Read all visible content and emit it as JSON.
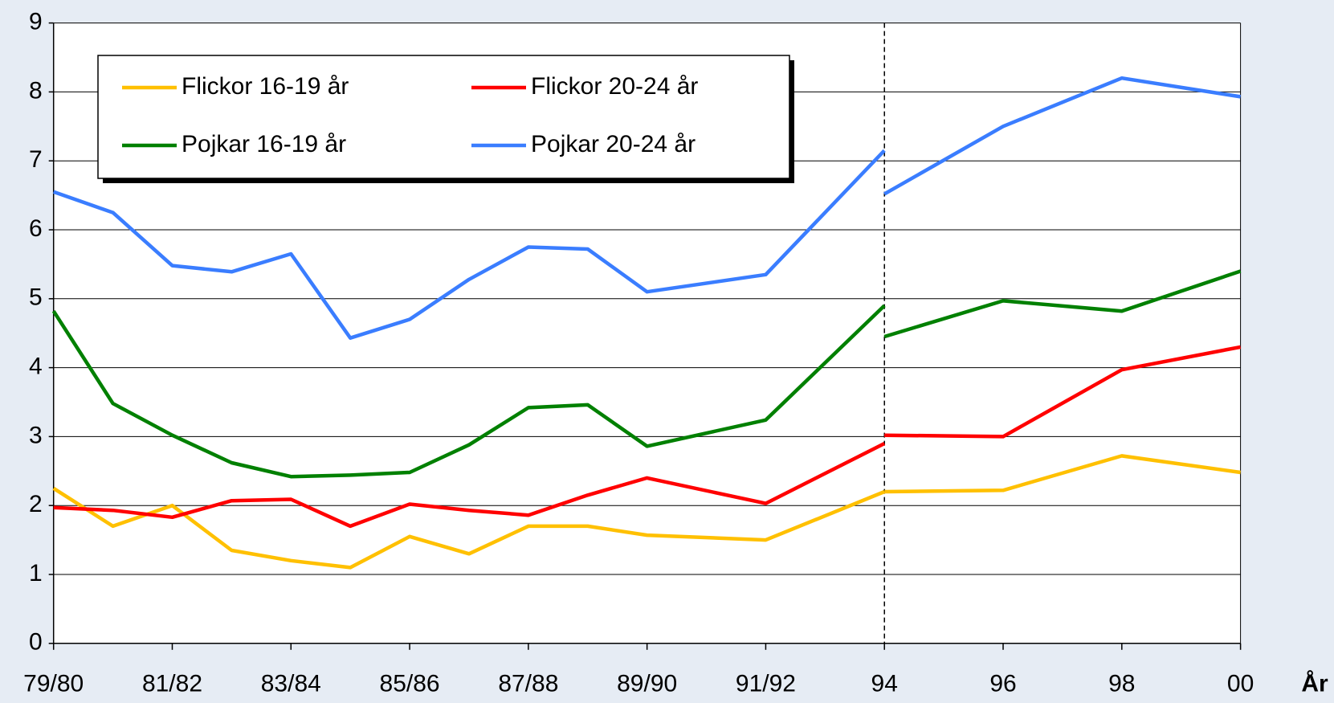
{
  "chart_data": {
    "type": "line",
    "x_label": "År",
    "x": [
      80,
      81,
      82,
      83,
      84,
      85,
      86,
      87,
      88,
      89,
      90,
      92,
      94
    ],
    "x_revised": [
      94,
      96,
      98,
      100
    ],
    "series": [
      {
        "name": "Flickor 16-19 år",
        "color": "#ffc000",
        "values": [
          2.25,
          1.7,
          2.0,
          1.35,
          1.2,
          1.1,
          1.55,
          1.3,
          1.7,
          1.7,
          1.57,
          1.5,
          2.2
        ],
        "values_revised": [
          2.2,
          2.22,
          2.72,
          2.48
        ]
      },
      {
        "name": "Flickor 20-24 år",
        "color": "#ff0000",
        "values": [
          1.97,
          1.93,
          1.83,
          2.07,
          2.09,
          1.7,
          2.02,
          1.93,
          1.86,
          2.15,
          2.4,
          2.03,
          2.9
        ],
        "values_revised": [
          3.02,
          3.0,
          3.97,
          4.3
        ]
      },
      {
        "name": "Pojkar 16-19 år",
        "color": "#008000",
        "values": [
          4.82,
          3.48,
          3.02,
          2.62,
          2.42,
          2.44,
          2.48,
          2.88,
          3.42,
          3.46,
          2.86,
          3.24,
          4.9
        ],
        "values_revised": [
          4.45,
          4.97,
          4.82,
          5.4
        ]
      },
      {
        "name": "Pojkar 20-24 år",
        "color": "#3a7dff",
        "values": [
          6.55,
          6.25,
          5.48,
          5.39,
          5.65,
          4.43,
          4.7,
          5.28,
          5.75,
          5.72,
          5.1,
          5.35,
          7.15
        ],
        "values_revised": [
          6.52,
          7.5,
          8.2,
          7.93
        ]
      }
    ],
    "xlim": [
      80,
      100
    ],
    "xticks": [
      {
        "value": 80,
        "label": "79/80"
      },
      {
        "value": 82,
        "label": "81/82"
      },
      {
        "value": 84,
        "label": "83/84"
      },
      {
        "value": 86,
        "label": "85/86"
      },
      {
        "value": 88,
        "label": "87/88"
      },
      {
        "value": 90,
        "label": "89/90"
      },
      {
        "value": 92,
        "label": "91/92"
      },
      94,
      96,
      98,
      {
        "value": 100,
        "label": "00"
      }
    ],
    "ylim": [
      0,
      9
    ],
    "yticks": [
      0,
      1,
      2,
      3,
      4,
      5,
      6,
      7,
      8,
      9
    ],
    "grid": true
  }
}
